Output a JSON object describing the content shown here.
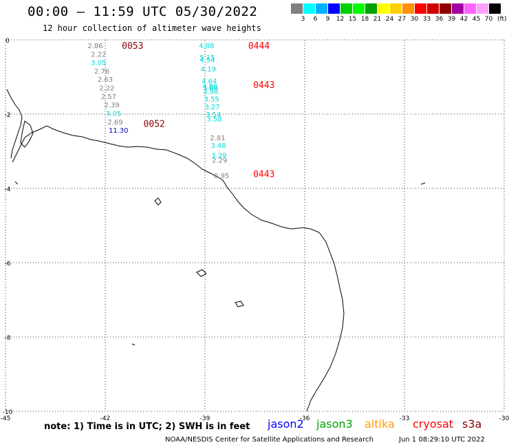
{
  "header": {
    "title": "00:00 – 11:59 UTC 05/30/2022",
    "subtitle": "12 hour collection of altimeter wave heights"
  },
  "color_scale": {
    "colors": [
      "#808080",
      "#00ffff",
      "#00b0ff",
      "#0000ff",
      "#00d000",
      "#00ff00",
      "#00a000",
      "#ffff00",
      "#ffd000",
      "#ff9000",
      "#ff0000",
      "#d00000",
      "#900000",
      "#a000a0",
      "#ff60ff",
      "#ffa0ff",
      "#000000"
    ],
    "labels": [
      "3",
      "6",
      "9",
      "12",
      "15",
      "18",
      "21",
      "24",
      "27",
      "30",
      "33",
      "36",
      "39",
      "42",
      "45",
      "70"
    ],
    "unit": "(ft)"
  },
  "map": {
    "x_ticks": [
      "-45",
      "-42",
      "-39",
      "-36",
      "-33",
      "-30"
    ],
    "y_ticks": [
      "0",
      "-2",
      "-4",
      "-6",
      "-8",
      "-10"
    ],
    "x_range": [
      -45,
      -30
    ],
    "y_range": [
      -10,
      0
    ],
    "passes": [
      {
        "time": "0053",
        "time_color": "#8b0000",
        "points": [
          {
            "v": "2.86",
            "color": "#808080",
            "lon": -42.3,
            "lat": -0.15
          },
          {
            "v": "2.22",
            "color": "#808080",
            "lon": -42.2,
            "lat": -0.38
          },
          {
            "v": "3.05",
            "color": "#00d8d8",
            "lon": -42.2,
            "lat": -0.6
          },
          {
            "v": "2.76",
            "color": "#808080",
            "lon": -42.1,
            "lat": -0.83
          },
          {
            "v": "2.63",
            "color": "#808080",
            "lon": -42.0,
            "lat": -1.06
          },
          {
            "v": "2.22",
            "color": "#808080",
            "lon": -41.95,
            "lat": -1.29
          },
          {
            "v": "2.57",
            "color": "#808080",
            "lon": -41.9,
            "lat": -1.52
          },
          {
            "v": "2.39",
            "color": "#808080",
            "lon": -41.8,
            "lat": -1.74
          },
          {
            "v": "3.05",
            "color": "#00d8d8",
            "lon": -41.75,
            "lat": -1.97
          },
          {
            "v": "2.69",
            "color": "#808080",
            "lon": -41.7,
            "lat": -2.2
          },
          {
            "v": "11.30",
            "color": "#0000cc",
            "lon": -41.6,
            "lat": -2.43
          }
        ]
      },
      {
        "time": "0052",
        "time_color": "#8b0000",
        "points": []
      },
      {
        "time": "0444",
        "time_color": "#ff0000",
        "points": [
          {
            "v": "4.88",
            "color": "#00d8d8",
            "lon": -38.95,
            "lat": -0.15
          },
          {
            "v": "5.15",
            "color": "#00d8d8",
            "lon": -38.93,
            "lat": -0.46
          },
          {
            "v": "4.54",
            "color": "#00d8d8",
            "lon": -38.93,
            "lat": -0.53
          },
          {
            "v": "4.19",
            "color": "#00d8d8",
            "lon": -38.9,
            "lat": -0.78
          },
          {
            "v": "4.64",
            "color": "#00d8d8",
            "lon": -38.87,
            "lat": -1.1
          },
          {
            "v": "4.80",
            "color": "#00d8d8",
            "lon": -38.85,
            "lat": -1.24
          },
          {
            "v": "3.86",
            "color": "#00d8d8",
            "lon": -38.84,
            "lat": -1.28
          }
        ]
      },
      {
        "time": "0443",
        "time_color": "#ff0000",
        "points": [
          {
            "v": "3.98",
            "color": "#00d8d8",
            "lon": -38.83,
            "lat": -1.38
          },
          {
            "v": "3.55",
            "color": "#00d8d8",
            "lon": -38.8,
            "lat": -1.58
          },
          {
            "v": "3.27",
            "color": "#00d8d8",
            "lon": -38.78,
            "lat": -1.8
          },
          {
            "v": "3.54",
            "color": "#00d8d8",
            "lon": -38.75,
            "lat": -2.0
          },
          {
            "v": "3.58",
            "color": "#00d8d8",
            "lon": -38.72,
            "lat": -2.12
          }
        ]
      },
      {
        "time": "0443",
        "time_color": "#ff0000",
        "points": [
          {
            "v": "2.81",
            "color": "#808080",
            "lon": -38.62,
            "lat": -2.63
          },
          {
            "v": "3.48",
            "color": "#00d8d8",
            "lon": -38.6,
            "lat": -2.83
          },
          {
            "v": "3.29",
            "color": "#00d8d8",
            "lon": -38.58,
            "lat": -3.1
          },
          {
            "v": "2.29",
            "color": "#808080",
            "lon": -38.56,
            "lat": -3.23
          },
          {
            "v": "0.95",
            "color": "#808080",
            "lon": -38.5,
            "lat": -3.65
          }
        ]
      }
    ]
  },
  "footer": {
    "note": "note:  1) Time is in UTC; 2) SWH is in feet",
    "satellites": [
      {
        "name": "jason2",
        "color": "#0000ff"
      },
      {
        "name": "jason3",
        "color": "#00a000"
      },
      {
        "name": "altika",
        "color": "#ff9900"
      },
      {
        "name": "cryosat",
        "color": "#ff0000"
      },
      {
        "name": "s3a",
        "color": "#8b0000"
      }
    ],
    "credit": "NOAA/NESDIS Center for Satellite Applications and Research",
    "timestamp": "Jun  1 08:29:10 UTC 2022"
  }
}
